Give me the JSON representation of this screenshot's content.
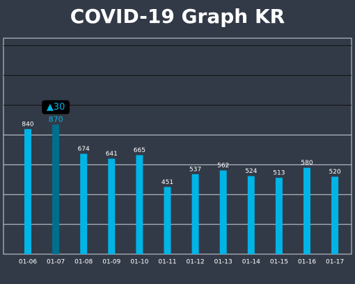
{
  "chart_data": {
    "type": "bar",
    "title": "COVID-19 Graph KR",
    "categories": [
      "01-06",
      "01-07",
      "01-08",
      "01-09",
      "01-10",
      "01-11",
      "01-12",
      "01-13",
      "01-14",
      "01-15",
      "01-16",
      "01-17"
    ],
    "values": [
      840,
      870,
      674,
      641,
      665,
      451,
      537,
      562,
      524,
      513,
      580,
      520
    ],
    "color": "#00b4e6",
    "highlight_color": "#006f8e",
    "highlight_index": 1,
    "tooltip": "▲30",
    "ylim": [
      0,
      1450
    ],
    "yticks": [
      200,
      400,
      600,
      800,
      1000,
      1200,
      1400
    ],
    "grid": true
  }
}
